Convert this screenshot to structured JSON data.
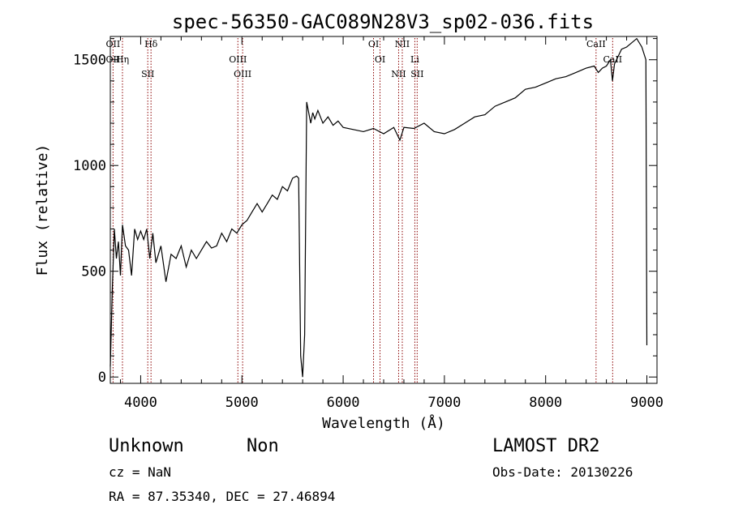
{
  "chart_data": {
    "type": "line",
    "title": "spec-56350-GAC089N28V3_sp02-036.fits",
    "xlabel": "Wavelength (Å)",
    "ylabel": "Flux (relative)",
    "xlim": [
      3700,
      9100
    ],
    "ylim": [
      -30,
      1610
    ],
    "xticks": [
      4000,
      5000,
      6000,
      7000,
      8000,
      9000
    ],
    "yticks": [
      0,
      500,
      1000,
      1500
    ],
    "grid": false,
    "line_color": "#000000",
    "marker_color": "#8b0000",
    "series": [
      {
        "x": [
          3700,
          3720,
          3740,
          3760,
          3780,
          3800,
          3820,
          3850,
          3880,
          3910,
          3940,
          3970,
          4000,
          4030,
          4060,
          4090,
          4120,
          4150,
          4200,
          4250,
          4300,
          4350,
          4400,
          4450,
          4500,
          4550,
          4600,
          4650,
          4700,
          4750,
          4800,
          4850,
          4900,
          4950,
          5000,
          5050,
          5100,
          5150,
          5200,
          5250,
          5300,
          5350,
          5400,
          5450,
          5500,
          5540,
          5560,
          5580,
          5600,
          5620,
          5640,
          5660,
          5680,
          5700,
          5720,
          5750,
          5800,
          5850,
          5900,
          5950,
          6000,
          6100,
          6200,
          6300,
          6400,
          6500,
          6560,
          6600,
          6700,
          6800,
          6900,
          7000,
          7100,
          7200,
          7300,
          7400,
          7500,
          7600,
          7700,
          7800,
          7900,
          8000,
          8100,
          8200,
          8300,
          8400,
          8480,
          8520,
          8540,
          8560,
          8600,
          8640,
          8660,
          8680,
          8700,
          8750,
          8800,
          8850,
          8900,
          8950,
          8990,
          9000
        ],
        "y": [
          50,
          420,
          700,
          560,
          640,
          480,
          720,
          620,
          600,
          480,
          700,
          650,
          690,
          650,
          700,
          560,
          680,
          540,
          620,
          450,
          580,
          560,
          620,
          520,
          600,
          560,
          600,
          640,
          610,
          620,
          680,
          640,
          700,
          680,
          720,
          740,
          780,
          820,
          780,
          820,
          860,
          840,
          900,
          880,
          940,
          950,
          940,
          100,
          0,
          200,
          1300,
          1250,
          1200,
          1250,
          1220,
          1260,
          1200,
          1230,
          1190,
          1210,
          1180,
          1170,
          1160,
          1175,
          1150,
          1180,
          1120,
          1180,
          1175,
          1200,
          1160,
          1150,
          1170,
          1200,
          1230,
          1240,
          1280,
          1300,
          1320,
          1360,
          1370,
          1390,
          1410,
          1420,
          1440,
          1460,
          1470,
          1440,
          1450,
          1460,
          1470,
          1500,
          1400,
          1480,
          1500,
          1550,
          1560,
          1580,
          1600,
          1560,
          1500,
          150
        ]
      }
    ],
    "line_markers": [
      {
        "wavelength": 3727,
        "labels": [
          "OII",
          "OII"
        ]
      },
      {
        "wavelength": 3820,
        "labels": [
          "Hη"
        ]
      },
      {
        "wavelength": 4070,
        "labels": [
          "SII"
        ]
      },
      {
        "wavelength": 4102,
        "labels": [
          "Hδ"
        ]
      },
      {
        "wavelength": 4960,
        "labels": [
          "OIII"
        ]
      },
      {
        "wavelength": 5007,
        "labels": [
          "OIII"
        ]
      },
      {
        "wavelength": 6300,
        "labels": [
          "OI"
        ]
      },
      {
        "wavelength": 6364,
        "labels": [
          "OI"
        ]
      },
      {
        "wavelength": 6548,
        "labels": [
          "NII"
        ]
      },
      {
        "wavelength": 6584,
        "labels": [
          "NII"
        ]
      },
      {
        "wavelength": 6708,
        "labels": [
          "Li"
        ]
      },
      {
        "wavelength": 6731,
        "labels": [
          "SII"
        ]
      },
      {
        "wavelength": 8498,
        "labels": [
          "CaII"
        ]
      },
      {
        "wavelength": 8662,
        "labels": [
          "CaII"
        ]
      }
    ]
  },
  "footer": {
    "classification": "Unknown",
    "subclass": "Non",
    "survey": "LAMOST DR2",
    "cz": "cz = NaN",
    "obs_date": "Obs-Date: 20130226",
    "coords": "RA =  87.35340, DEC =  27.46894"
  }
}
